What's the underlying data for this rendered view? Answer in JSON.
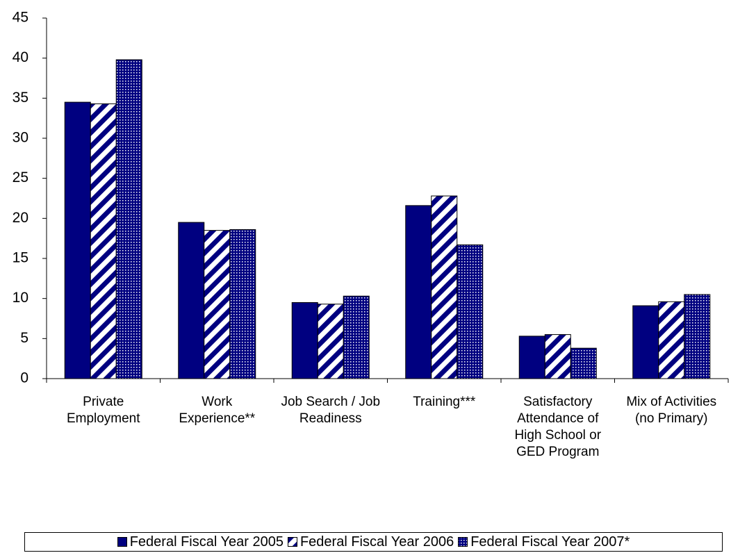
{
  "chart_data": {
    "type": "bar",
    "categories": [
      "Private Employment",
      "Work Experience**",
      "Job Search / Job Readiness",
      "Training***",
      "Satisfactory Attendance of High School or GED Program",
      "Mix of Activities (no Primary)"
    ],
    "series": [
      {
        "name": "Federal Fiscal Year 2005",
        "color": "#000080",
        "pattern": "solid",
        "values": [
          34.5,
          19.5,
          9.5,
          21.6,
          5.3,
          9.1
        ]
      },
      {
        "name": "Federal Fiscal Year 2006",
        "color": "#000080",
        "pattern": "stripes",
        "values": [
          34.3,
          18.5,
          9.3,
          22.8,
          5.5,
          9.6
        ]
      },
      {
        "name": "Federal Fiscal Year 2007*",
        "color": "#000080",
        "pattern": "dots",
        "values": [
          39.8,
          18.6,
          10.3,
          16.7,
          3.8,
          10.5
        ]
      }
    ],
    "ylim": [
      0,
      45
    ],
    "yticks": [
      0,
      5,
      10,
      15,
      20,
      25,
      30,
      35,
      40,
      45
    ],
    "grid": false,
    "legend": "bottom"
  }
}
